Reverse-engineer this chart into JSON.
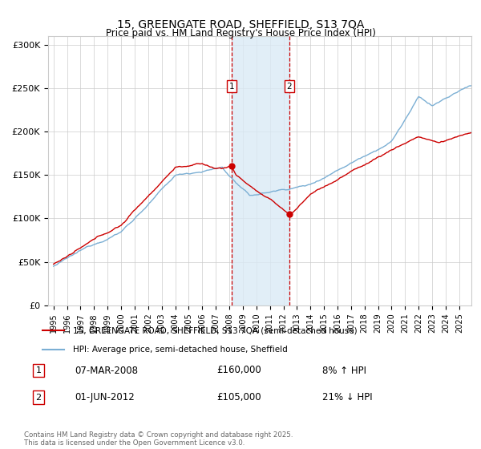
{
  "title": "15, GREENGATE ROAD, SHEFFIELD, S13 7QA",
  "subtitle": "Price paid vs. HM Land Registry's House Price Index (HPI)",
  "legend_line1": "15, GREENGATE ROAD, SHEFFIELD, S13 7QA (semi-detached house)",
  "legend_line2": "HPI: Average price, semi-detached house, Sheffield",
  "footer": "Contains HM Land Registry data © Crown copyright and database right 2025.\nThis data is licensed under the Open Government Licence v3.0.",
  "sale1_date": "07-MAR-2008",
  "sale1_price": "£160,000",
  "sale1_label": "8% ↑ HPI",
  "sale1_year": 2008.17,
  "sale1_val": 160000,
  "sale2_date": "01-JUN-2012",
  "sale2_price": "£105,000",
  "sale2_label": "21% ↓ HPI",
  "sale2_year": 2012.42,
  "sale2_val": 105000,
  "ylabel_ticks": [
    0,
    50000,
    100000,
    150000,
    200000,
    250000,
    300000
  ],
  "ylabel_labels": [
    "£0",
    "£50K",
    "£100K",
    "£150K",
    "£200K",
    "£250K",
    "£300K"
  ],
  "red_color": "#cc0000",
  "blue_color": "#7bafd4",
  "shade_color": "#daeaf5",
  "vline_color": "#cc0000",
  "box_color": "#cc0000",
  "background": "#ffffff",
  "grid_color": "#cccccc",
  "ylim": [
    0,
    310000
  ],
  "xlim_min": 1994.6,
  "xlim_max": 2025.9
}
